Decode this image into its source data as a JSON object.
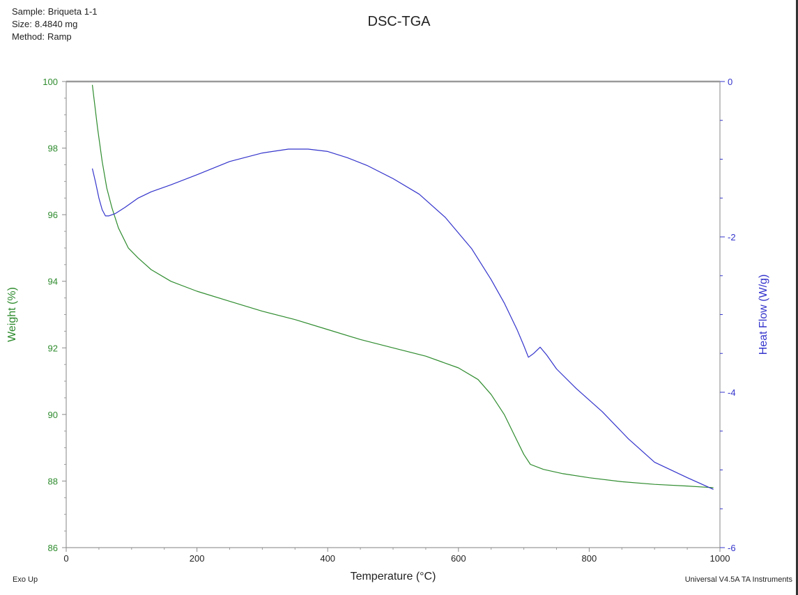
{
  "header": {
    "sample_label": "Sample:",
    "sample_value": "Briqueta 1-1",
    "size_label": "Size:",
    "size_value": "8.4840 mg",
    "method_label": "Method:",
    "method_value": "Ramp"
  },
  "footer": {
    "left": "Exo Up",
    "right": "Universal V4.5A TA Instruments"
  },
  "colors": {
    "weight": "#2e8b2e",
    "heatflow": "#3333cc",
    "axis": "#888888",
    "text": "#222222"
  },
  "chart_data": {
    "type": "line",
    "title": "DSC-TGA",
    "xlabel": "Temperature (°C)",
    "ylabel": "Weight (%)",
    "y2label": "Heat Flow (W/g)",
    "xlim": [
      0,
      1000
    ],
    "ylim": [
      86,
      100
    ],
    "y2lim": [
      -6,
      0
    ],
    "xticks": [
      "0",
      "200",
      "400",
      "600",
      "800",
      "1000"
    ],
    "yticks": [
      "86",
      "88",
      "90",
      "92",
      "94",
      "96",
      "98",
      "100"
    ],
    "y2ticks": [
      "-6",
      "-4",
      "-2",
      "0"
    ],
    "xtick_values": [
      0,
      200,
      400,
      600,
      800,
      1000
    ],
    "ytick_values": [
      86,
      88,
      90,
      92,
      94,
      96,
      98,
      100
    ],
    "y2tick_values": [
      -6,
      -4,
      -2,
      0
    ],
    "grid": false,
    "series": [
      {
        "axis": "left",
        "color": "#2e8b2e",
        "x": [
          40,
          48,
          55,
          62,
          70,
          80,
          95,
          110,
          130,
          160,
          200,
          250,
          300,
          350,
          400,
          450,
          500,
          550,
          600,
          630,
          650,
          670,
          690,
          700,
          710,
          730,
          760,
          800,
          850,
          900,
          950,
          990
        ],
        "y": [
          99.9,
          98.6,
          97.6,
          96.8,
          96.2,
          95.6,
          95.0,
          94.7,
          94.35,
          94.0,
          93.7,
          93.4,
          93.1,
          92.85,
          92.55,
          92.25,
          92.0,
          91.75,
          91.4,
          91.05,
          90.6,
          90.0,
          89.2,
          88.8,
          88.5,
          88.35,
          88.22,
          88.1,
          87.98,
          87.9,
          87.85,
          87.8
        ]
      },
      {
        "axis": "right",
        "color": "#3333cc",
        "x": [
          40,
          45,
          50,
          55,
          60,
          65,
          75,
          90,
          110,
          130,
          160,
          200,
          250,
          300,
          340,
          370,
          400,
          430,
          460,
          500,
          540,
          580,
          620,
          650,
          670,
          690,
          700,
          707,
          715,
          725,
          735,
          750,
          780,
          820,
          860,
          900,
          950,
          990
        ],
        "y": [
          -1.12,
          -1.3,
          -1.5,
          -1.65,
          -1.73,
          -1.73,
          -1.7,
          -1.62,
          -1.5,
          -1.42,
          -1.33,
          -1.2,
          -1.03,
          -0.92,
          -0.87,
          -0.87,
          -0.9,
          -0.98,
          -1.08,
          -1.25,
          -1.45,
          -1.75,
          -2.15,
          -2.55,
          -2.85,
          -3.2,
          -3.4,
          -3.55,
          -3.5,
          -3.42,
          -3.52,
          -3.7,
          -3.95,
          -4.25,
          -4.6,
          -4.9,
          -5.1,
          -5.25
        ]
      }
    ]
  }
}
